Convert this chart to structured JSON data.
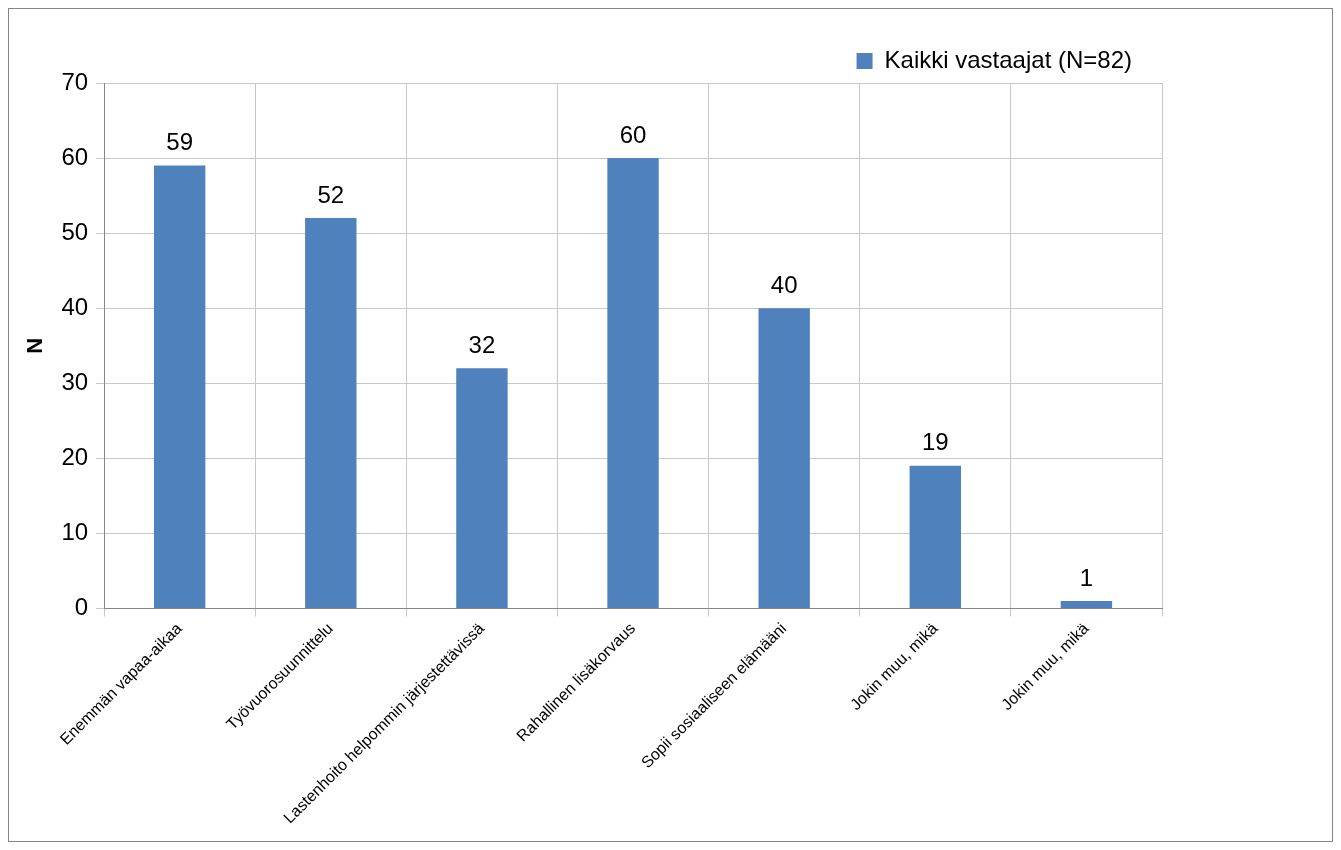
{
  "chart_data": {
    "type": "bar",
    "ylabel": "N",
    "categories": [
      "Enemmän vapaa-aikaa",
      "Työvuorosuunnittelu",
      "Lastenhoito helpommin järjestettävissä",
      "Rahallinen lisäkorvaus",
      "Sopii sosiaaliseen elämääni",
      "Jokin muu, mikä",
      "Jokin muu, mikä"
    ],
    "series": [
      {
        "name": "Kaikki vastaajat (N=82)",
        "color": "#4f81bd",
        "values": [
          59,
          52,
          32,
          60,
          40,
          19,
          1
        ]
      }
    ],
    "ylim": [
      0,
      70
    ],
    "yticks": [
      0,
      10,
      20,
      30,
      40,
      50,
      60,
      70
    ],
    "grid": true,
    "legend": "top right",
    "data_labels": true
  }
}
